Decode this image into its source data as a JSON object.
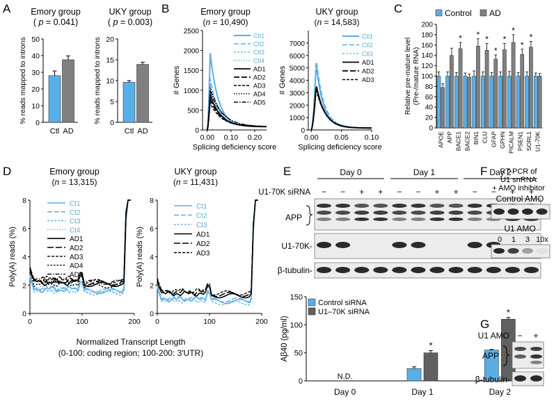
{
  "chart_data": [
    {
      "panel": "A",
      "type": "bar",
      "title": "Emory group",
      "subtitle": "( p = 0.041)",
      "ylabel": "% reads mapped to introns",
      "categories": [
        "Ctl",
        "AD"
      ],
      "values": [
        28,
        37.5
      ],
      "errors": [
        2.8,
        2.3
      ],
      "ylim": [
        0,
        50
      ],
      "yticks": [
        "0",
        "10",
        "20",
        "30",
        "40",
        "50"
      ],
      "colors": [
        "#5aaee6",
        "#808080"
      ]
    },
    {
      "panel": "A",
      "type": "bar",
      "title": "UKY group",
      "subtitle": "( p = 0.003)",
      "ylabel": "% reads mapped to introns",
      "categories": [
        "Ctl",
        "AD"
      ],
      "values": [
        9.6,
        13.9
      ],
      "errors": [
        0.4,
        0.5
      ],
      "ylim": [
        0,
        20
      ],
      "yticks": [
        "0",
        "5",
        "10",
        "15",
        "20"
      ],
      "colors": [
        "#5aaee6",
        "#808080"
      ]
    },
    {
      "panel": "B",
      "type": "line",
      "title": "Emory group",
      "subtitle": "(n = 10,490)",
      "xlabel": "Splicing deficiency score",
      "ylabel": "# Genes",
      "xlim": [
        -0.02,
        0.25
      ],
      "ylim": [
        0,
        2500
      ],
      "xticks": [
        "0.00",
        "0.10",
        "0.20"
      ],
      "yticks": [
        "0",
        "500",
        "1000",
        "1500",
        "2000",
        "2500"
      ],
      "series": [
        {
          "name": "Ctl1",
          "peak": 1950
        },
        {
          "name": "Ctl2",
          "peak": 1300
        },
        {
          "name": "Ctl3",
          "peak": 1150
        },
        {
          "name": "Ctl4",
          "peak": 1000
        },
        {
          "name": "AD1",
          "peak": 900
        },
        {
          "name": "AD2",
          "peak": 780
        },
        {
          "name": "AD3",
          "peak": 680
        },
        {
          "name": "AD4",
          "peak": 1070
        },
        {
          "name": "AD5",
          "peak": 1000
        }
      ]
    },
    {
      "panel": "B",
      "type": "line",
      "title": "UKY group",
      "subtitle": "(n = 14,583)",
      "xlabel": "Splicing deficiency score",
      "ylabel": "# Genes",
      "xlim": [
        -0.005,
        0.1
      ],
      "ylim": [
        0,
        8000
      ],
      "xticks": [
        "0.00",
        "0.05",
        "0.10"
      ],
      "yticks": [
        "0",
        "1000",
        "2000",
        "3000",
        "4000",
        "5000",
        "6000",
        "7000"
      ],
      "series": [
        {
          "name": "Ctl1",
          "peak": 5300
        },
        {
          "name": "Ctl2",
          "peak": 5800
        },
        {
          "name": "Ctl3",
          "peak": 5500
        },
        {
          "name": "AD1",
          "peak": 3650
        },
        {
          "name": "AD2",
          "peak": 3450
        },
        {
          "name": "AD3",
          "peak": 3250
        }
      ]
    },
    {
      "panel": "C",
      "type": "bar",
      "ylabel": "Relative pre-mature level\n(Pre-/mature RNA)",
      "ylim": [
        0,
        200
      ],
      "yticks": [
        "0",
        "20",
        "40",
        "60",
        "80",
        "100",
        "120",
        "140",
        "160",
        "180",
        "200"
      ],
      "categories": [
        "APOE",
        "APP",
        "BACE1",
        "BACE2",
        "BIN1",
        "CLU",
        "GFAP",
        "GPHN",
        "PICALM",
        "PSEN1",
        "SORL1",
        "U1-70K"
      ],
      "series": [
        {
          "name": "Control",
          "values": [
            100,
            100,
            100,
            100,
            100,
            100,
            100,
            100,
            100,
            100,
            100,
            100
          ],
          "errors": [
            8,
            8,
            7,
            6,
            10,
            8,
            7,
            8,
            9,
            7,
            8,
            6
          ]
        },
        {
          "name": "AD",
          "values": [
            78,
            140,
            153,
            98,
            158,
            150,
            133,
            151,
            165,
            142,
            156,
            100
          ],
          "errors": [
            7,
            14,
            12,
            6,
            14,
            13,
            8,
            12,
            15,
            10,
            11,
            5
          ]
        }
      ],
      "significant": [
        "",
        "",
        "*",
        "",
        "*",
        "*",
        "*",
        "*",
        "*",
        "*",
        "*",
        ""
      ],
      "colors": [
        "#5aaee6",
        "#808080"
      ]
    },
    {
      "panel": "D",
      "type": "line",
      "title": "Emory group",
      "subtitle": "(n = 13,315)",
      "ylabel": "Poly(A) reads (%)",
      "xlim": [
        0,
        200
      ],
      "ylim": [
        0,
        8
      ],
      "xticks": [
        "0",
        "100",
        "200"
      ],
      "yticks": [
        "0",
        "2",
        "4",
        "6",
        "8"
      ],
      "series": [
        {
          "name": "Ct1"
        },
        {
          "name": "Ct2"
        },
        {
          "name": "Ct3"
        },
        {
          "name": "Ct4"
        },
        {
          "name": "AD1"
        },
        {
          "name": "AD2"
        },
        {
          "name": "AD3"
        },
        {
          "name": "AD4"
        },
        {
          "name": "AD5"
        }
      ]
    },
    {
      "panel": "D",
      "type": "line",
      "title": "UKY group",
      "subtitle": "(n = 11,431)",
      "ylabel": "Poly(A) reads (%)",
      "xlim": [
        0,
        200
      ],
      "ylim": [
        0,
        8
      ],
      "xticks": [
        "0",
        "100",
        "200"
      ],
      "yticks": [
        "0",
        "2",
        "4",
        "6",
        "8"
      ],
      "series": [
        {
          "name": "Ct1"
        },
        {
          "name": "Ct2"
        },
        {
          "name": "Ct3"
        },
        {
          "name": "AD1"
        },
        {
          "name": "AD2"
        },
        {
          "name": "AD3"
        }
      ]
    },
    {
      "panel": "E",
      "type": "bar",
      "ylabel": "Aβ40 (pg/ml)",
      "ylim": [
        0,
        150
      ],
      "yticks": [
        "0",
        "50",
        "100",
        "150"
      ],
      "categories": [
        "Day 0",
        "Day 1",
        "Day 2"
      ],
      "series": [
        {
          "name": "Control  siRNA",
          "values": [
            0,
            22,
            55
          ],
          "errors": [
            0,
            3,
            1
          ]
        },
        {
          "name": "U1–70K siRNA",
          "values": [
            0,
            50,
            110
          ],
          "errors": [
            0,
            4,
            3
          ]
        }
      ],
      "significant": [
        "",
        "*",
        "*"
      ],
      "annotation": "N.D.",
      "colors": [
        "#5aaee6",
        "#606060"
      ]
    }
  ],
  "figure": {
    "panel_labels": [
      "A",
      "B",
      "C",
      "D",
      "E",
      "F",
      "G"
    ],
    "d_xlabel_line1": "Normalized Transcript Length",
    "d_xlabel_line2": "(0-100: coding region; 100-200: 3'UTR)",
    "e_days": [
      "Day 0",
      "Day 1",
      "Day 2"
    ],
    "e_sirna_label": "U1-70K siRNA",
    "e_signs": [
      "−",
      "−",
      "+",
      "+",
      "−",
      "−",
      "+",
      "+",
      "−",
      "−",
      "+",
      "+"
    ],
    "e_blot_labels": [
      "APP",
      "U1-70K-",
      "β-tubulin-"
    ],
    "f_title_lines": [
      "RT-PCR of",
      "U1 snRNA",
      "+ AMO inhibitor"
    ],
    "f_control_label": "Control AMO",
    "f_u1_label": "U1 AMO",
    "f_doses": [
      "0",
      "1",
      "3",
      "10x"
    ],
    "g_header": "U1 AMO",
    "g_signs": [
      "−",
      "+"
    ],
    "g_labels": [
      "APP",
      "β-tubulin-"
    ]
  }
}
